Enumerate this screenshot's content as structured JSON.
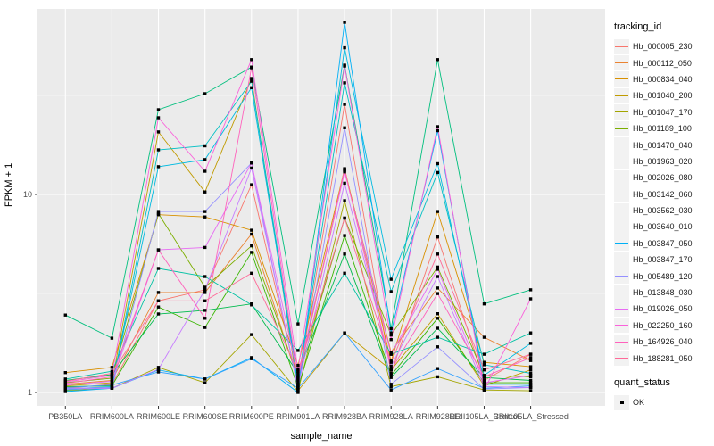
{
  "chart_data": {
    "type": "line",
    "title": "",
    "xlabel": "sample_name",
    "ylabel": "FPKM + 1",
    "y_scale": "log10",
    "ylim": [
      1,
      90
    ],
    "y_ticks": [
      1,
      10
    ],
    "y_tick_labels": [
      "1",
      "10"
    ],
    "grid": "on",
    "panel_background": "#EBEBEB",
    "grid_color": "#FFFFFF",
    "point_shape": "filled-square",
    "point_color": "#000000",
    "legend_position": "right",
    "categories": [
      "PB350LA",
      "RRIM600LA",
      "RRIM600LE",
      "RRIM600SE",
      "RRIM600PE",
      "RRIM901LA",
      "RRIM928BA",
      "RRIM928LA",
      "RRIM928LE",
      "RRII105LA_Control",
      "RRII105LA_Stressed"
    ],
    "series": [
      {
        "name": "Hb_000005_230",
        "color": "#F8766D",
        "values": [
          1.05,
          1.1,
          2.9,
          3.3,
          11.2,
          1.1,
          28.5,
          1.25,
          6.1,
          1.15,
          1.56
        ]
      },
      {
        "name": "Hb_000112_050",
        "color": "#EA8331",
        "values": [
          1.1,
          1.15,
          3.2,
          3.2,
          6.3,
          1.15,
          13.2,
          1.6,
          3.37,
          1.9,
          1.45
        ]
      },
      {
        "name": "Hb_000834_040",
        "color": "#D89000",
        "values": [
          1.26,
          1.34,
          7.9,
          7.7,
          6.6,
          1.37,
          13.5,
          1.44,
          8.2,
          1.42,
          1.35
        ]
      },
      {
        "name": "Hb_001040_200",
        "color": "#C09B00",
        "values": [
          1.08,
          1.12,
          20.7,
          10.3,
          38.5,
          1.02,
          2.0,
          1.3,
          2.5,
          1.08,
          1.3
        ]
      },
      {
        "name": "Hb_001047_170",
        "color": "#A3A500",
        "values": [
          1.02,
          1.05,
          1.34,
          1.12,
          1.96,
          1.01,
          9.3,
          1.07,
          1.2,
          1.03,
          1.02
        ]
      },
      {
        "name": "Hb_001189_100",
        "color": "#7CAE00",
        "values": [
          1.12,
          1.18,
          8.0,
          3.4,
          5.5,
          1.19,
          7.6,
          1.95,
          4.3,
          1.22,
          1.2
        ]
      },
      {
        "name": "Hb_001470_040",
        "color": "#39B600",
        "values": [
          1.07,
          1.08,
          2.7,
          2.13,
          5.1,
          1.06,
          6.2,
          1.22,
          2.37,
          1.12,
          1.12
        ]
      },
      {
        "name": "Hb_001963_020",
        "color": "#00BB4E",
        "values": [
          1.15,
          1.23,
          2.49,
          2.6,
          2.8,
          1.25,
          5.0,
          1.19,
          2.11,
          1.19,
          1.15
        ]
      },
      {
        "name": "Hb_002026_080",
        "color": "#00BF7D",
        "values": [
          2.46,
          1.88,
          26.8,
          32.3,
          44.0,
          2.22,
          45.0,
          2.1,
          48.0,
          2.8,
          3.3
        ]
      },
      {
        "name": "Hb_003142_060",
        "color": "#00C1A3",
        "values": [
          1.17,
          1.28,
          4.23,
          3.85,
          2.77,
          1.63,
          4.0,
          1.56,
          1.9,
          1.56,
          2.0
        ]
      },
      {
        "name": "Hb_003562_030",
        "color": "#00BFC4",
        "values": [
          1.03,
          1.06,
          16.8,
          17.6,
          37.3,
          1.12,
          36.6,
          3.23,
          12.9,
          1.38,
          1.25
        ]
      },
      {
        "name": "Hb_003640_010",
        "color": "#00BAE0",
        "values": [
          1.04,
          1.07,
          13.8,
          15.0,
          34.6,
          1.08,
          55.0,
          3.73,
          14.3,
          1.22,
          1.77
        ]
      },
      {
        "name": "Hb_003847_050",
        "color": "#00B0F6",
        "values": [
          1.01,
          1.05,
          1.3,
          1.17,
          1.5,
          1.0,
          74.0,
          2.0,
          21.0,
          1.1,
          1.1
        ]
      },
      {
        "name": "Hb_003847_170",
        "color": "#35A2FF",
        "values": [
          1.06,
          1.09,
          1.27,
          1.17,
          1.48,
          1.05,
          2.0,
          1.03,
          1.32,
          1.05,
          1.08
        ]
      },
      {
        "name": "Hb_005489_120",
        "color": "#9590FF",
        "values": [
          1.05,
          1.06,
          8.2,
          8.2,
          14.4,
          1.04,
          21.7,
          1.1,
          1.7,
          1.04,
          1.06
        ]
      },
      {
        "name": "Hb_013848_030",
        "color": "#C77CFF",
        "values": [
          1.04,
          1.05,
          1.31,
          3.3,
          13.6,
          1.07,
          11.4,
          1.36,
          3.85,
          1.07,
          1.06
        ]
      },
      {
        "name": "Hb_019026_050",
        "color": "#E76BF3",
        "values": [
          1.09,
          1.14,
          5.25,
          5.4,
          14.4,
          1.21,
          13.0,
          1.56,
          4.19,
          1.12,
          1.22
        ]
      },
      {
        "name": "Hb_022250_160",
        "color": "#FA62DB",
        "values": [
          1.13,
          1.22,
          24.4,
          13.1,
          48.0,
          1.3,
          44.5,
          1.85,
          22.0,
          1.03,
          2.97
        ]
      },
      {
        "name": "Hb_164926_040",
        "color": "#FF62BC",
        "values": [
          1.11,
          1.2,
          5.25,
          2.37,
          43.6,
          1.17,
          13.4,
          1.3,
          3.16,
          1.2,
          1.5
        ]
      },
      {
        "name": "Hb_188281_050",
        "color": "#FF6A98",
        "values": [
          1.14,
          1.25,
          2.9,
          2.9,
          4.0,
          1.28,
          7.6,
          1.42,
          5.0,
          1.3,
          1.56
        ]
      }
    ]
  },
  "axes": {
    "y_title": "FPKM + 1",
    "x_title": "sample_name"
  },
  "legend": {
    "tracking_title": "tracking_id",
    "quant_title": "quant_status",
    "quant_ok_label": "OK"
  }
}
